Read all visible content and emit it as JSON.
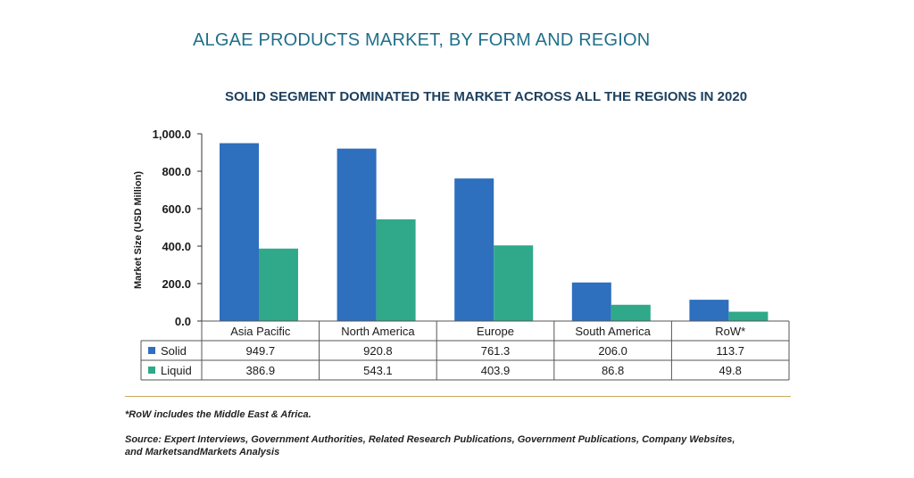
{
  "header": {
    "title": "ALGAE PRODUCTS MARKET, BY FORM AND REGION"
  },
  "chart_data": {
    "type": "bar",
    "title": "SOLID SEGMENT DOMINATED THE MARKET ACROSS ALL THE REGIONS IN 2020",
    "ylabel": "Market Size (USD Million)",
    "xlabel": "",
    "ylim": [
      0,
      1000
    ],
    "yticks": [
      "0.0",
      "200.0",
      "400.0",
      "600.0",
      "800.0",
      "1,000.0"
    ],
    "grid": false,
    "legend": "data-table",
    "categories": [
      "Asia Pacific",
      "North America",
      "Europe",
      "South America",
      "RoW*"
    ],
    "series": [
      {
        "name": "Solid",
        "color": "#2e6fbe",
        "values": [
          949.7,
          920.8,
          761.3,
          206.0,
          113.7
        ],
        "labels": [
          "949.7",
          "920.8",
          "761.3",
          "206.0",
          "113.7"
        ]
      },
      {
        "name": "Liquid",
        "color": "#2fa98a",
        "values": [
          386.9,
          543.1,
          403.9,
          86.8,
          49.8
        ],
        "labels": [
          "386.9",
          "543.1",
          "403.9",
          "86.8",
          "49.8"
        ]
      }
    ]
  },
  "footer": {
    "note": "*RoW includes the Middle East & Africa.",
    "source_line1": "Source: Expert Interviews, Government Authorities, Related Research Publications, Government Publications, Company Websites,",
    "source_line2": "and MarketsandMarkets Analysis"
  }
}
